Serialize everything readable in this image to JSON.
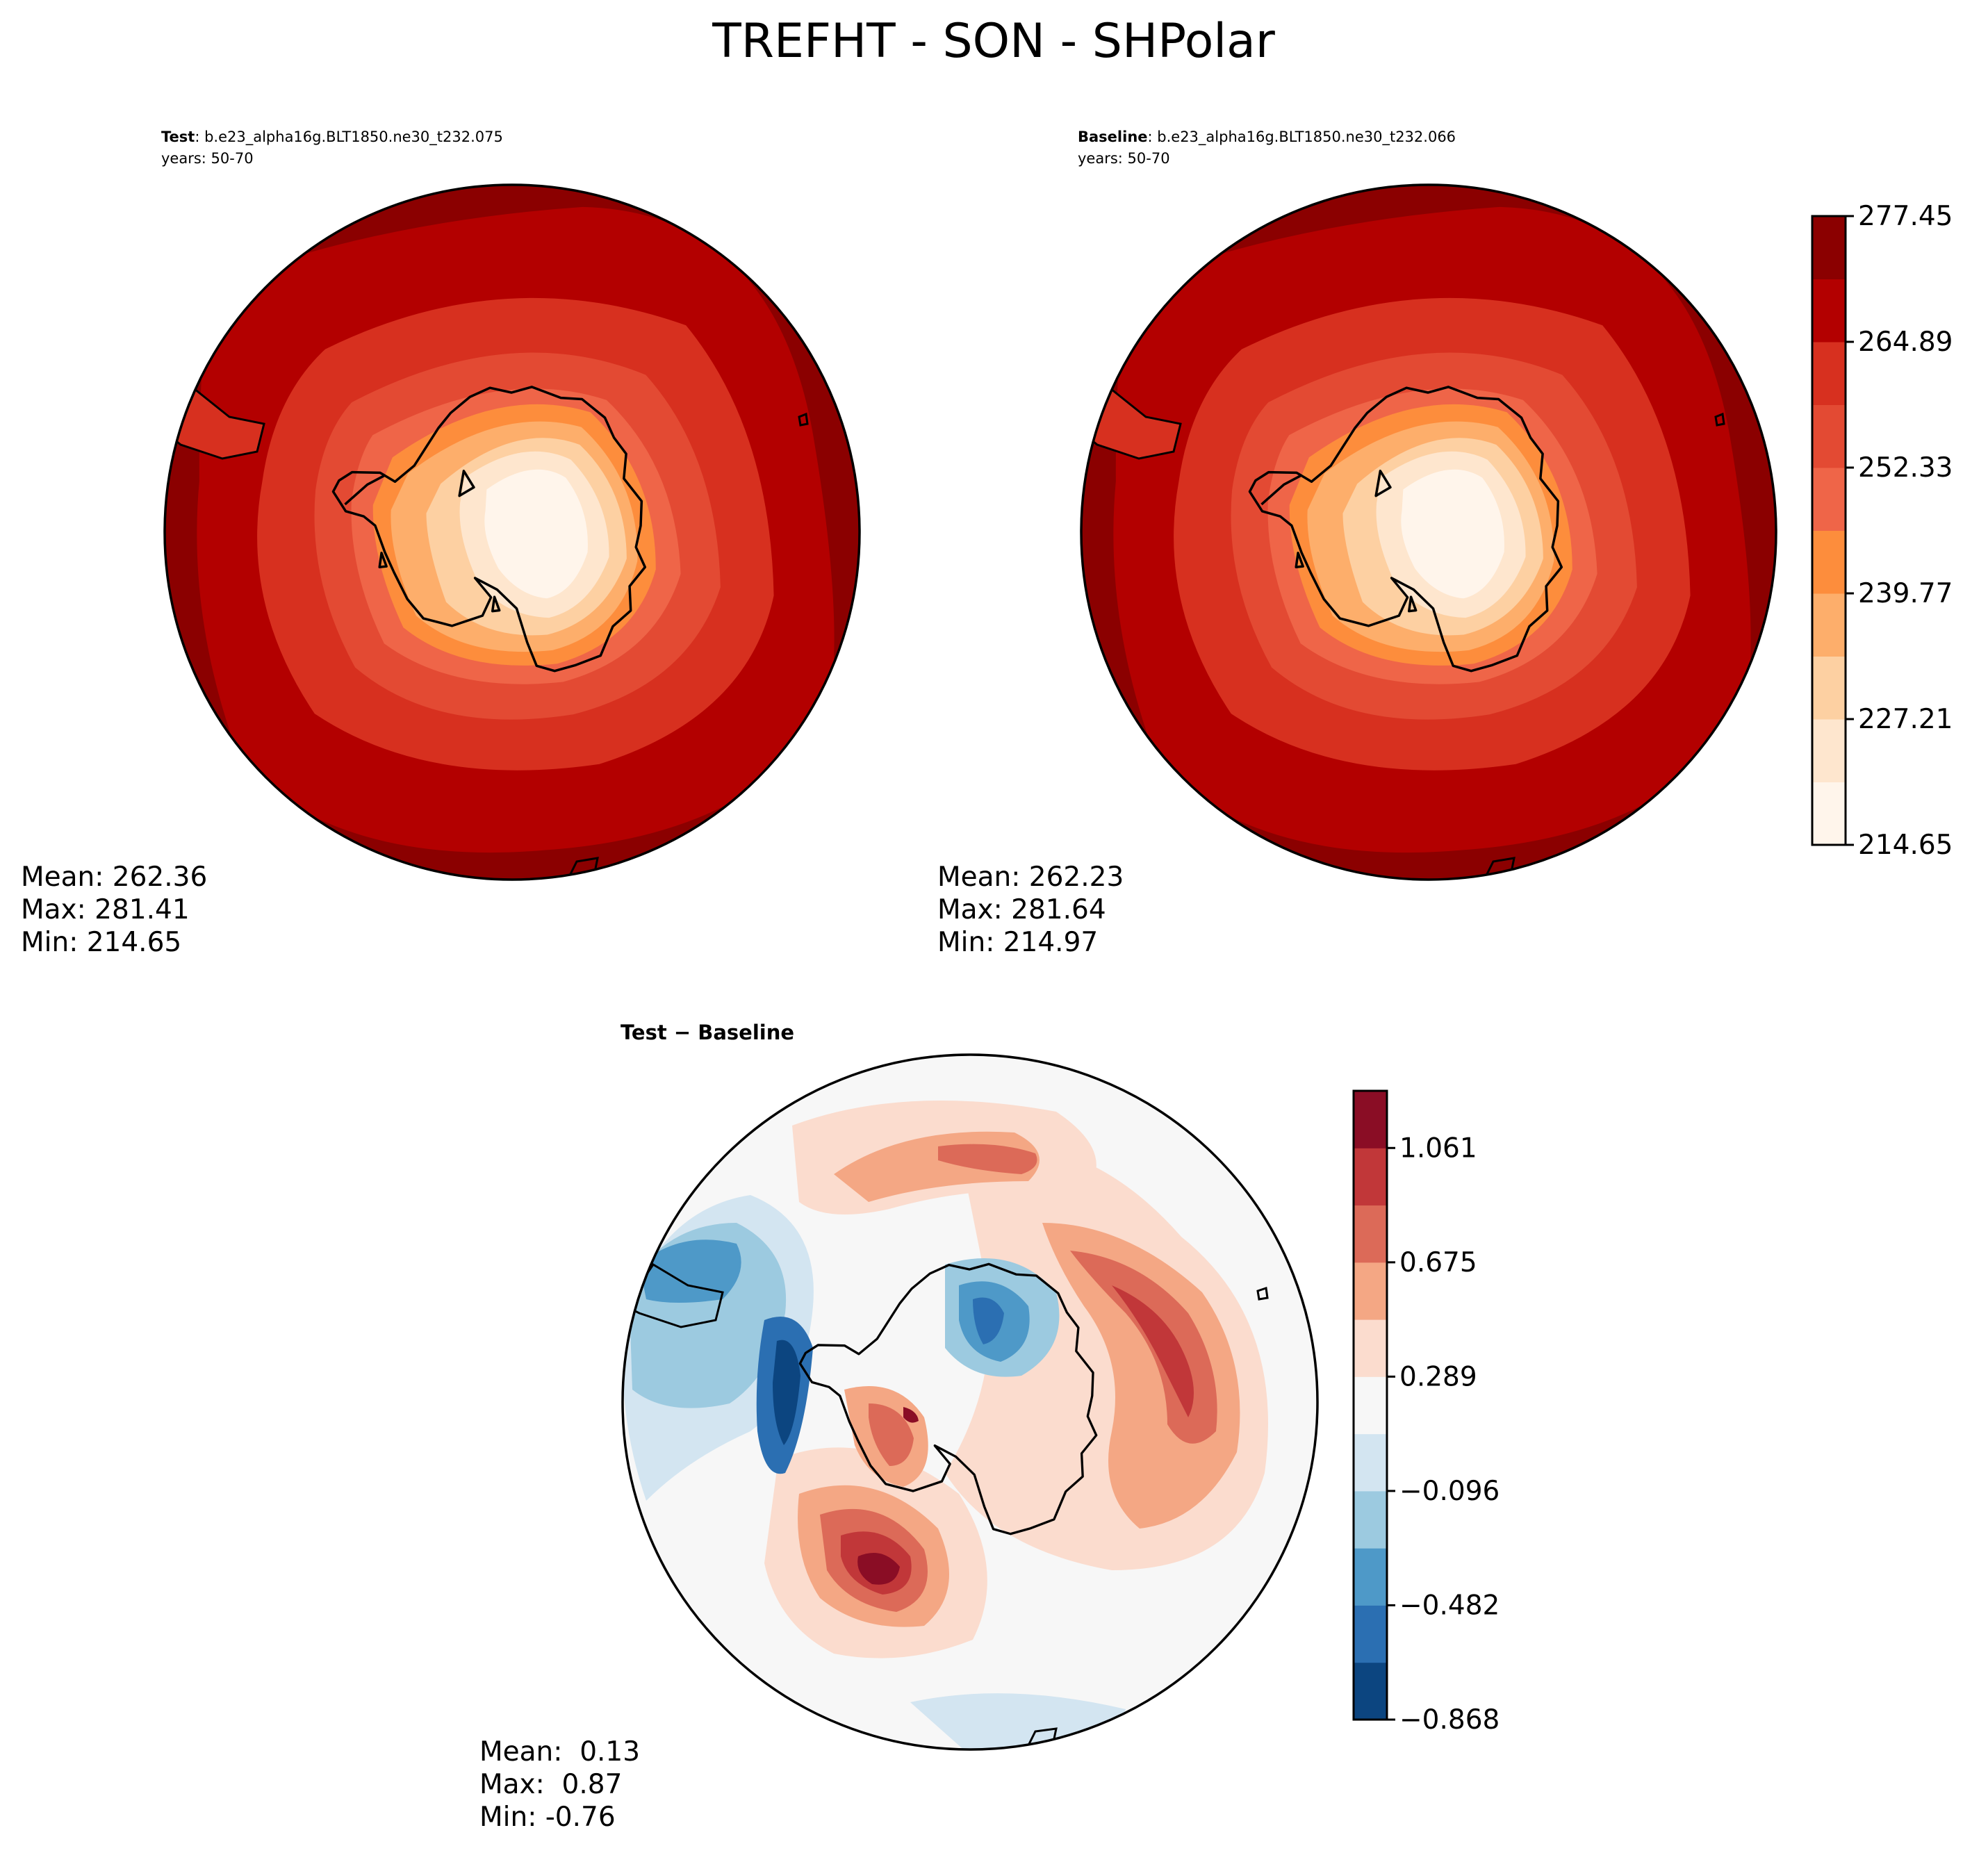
{
  "chart_data": {
    "type": "contour-map",
    "title": "TREFHT - SON - SHPolar",
    "projection": "south-polar-stereographic",
    "panels": [
      {
        "id": "test",
        "label_bold": "Test",
        "label_rest": ": b.e23_alpha16g.BLT1850.ne30_t232.075",
        "years": "years: 50-70",
        "stats": [
          "Mean: 262.36",
          "Max: 281.41",
          "Min: 214.65"
        ]
      },
      {
        "id": "baseline",
        "label_bold": "Baseline",
        "label_rest": ": b.e23_alpha16g.BLT1850.ne30_t232.066",
        "years": "years: 50-70",
        "stats": [
          "Mean: 262.23",
          "Max: 281.64",
          "Min: 214.97"
        ]
      },
      {
        "id": "diff",
        "label_bold": "Test − Baseline",
        "stats": [
          "Mean:  0.13",
          "Max:  0.87",
          "Min: -0.76"
        ]
      }
    ],
    "colorbars": [
      {
        "id": "abs",
        "colors": [
          "#fff5eb",
          "#fee6ce",
          "#fdd0a2",
          "#fdae6b",
          "#fd8d3c",
          "#ef6548",
          "#e34a33",
          "#d7301f",
          "#b30000",
          "#8b0000"
        ],
        "tick_labels": [
          "214.65",
          "227.21",
          "239.77",
          "252.33",
          "264.89",
          "277.45"
        ],
        "levels": 11
      },
      {
        "id": "diff",
        "colors": [
          "#0c4580",
          "#2b6fb2",
          "#4e99c8",
          "#9ccae0",
          "#d3e5f1",
          "#f7f7f7",
          "#fbdcce",
          "#f4a784",
          "#dc6a58",
          "#c13739",
          "#8a0d25"
        ],
        "tick_labels": [
          "−0.868",
          "−0.482",
          "−0.096",
          "0.289",
          "0.675",
          "1.061"
        ],
        "levels": 12
      }
    ]
  }
}
